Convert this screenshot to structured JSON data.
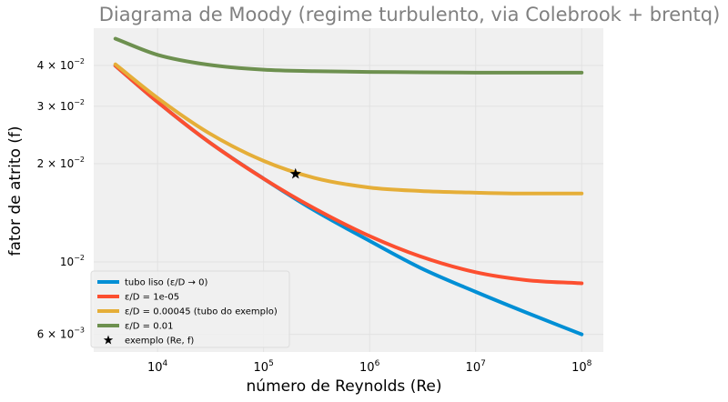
{
  "chart_data": {
    "type": "line",
    "title": "Diagrama de Moody (regime turbulento, via Colebrook + brentq)",
    "xlabel": "número de Reynolds (Re)",
    "ylabel": "fator de atrito (f)",
    "xscale": "log",
    "yscale": "log",
    "xlim": [
      2500,
      160000000
    ],
    "ylim": [
      0.0053,
      0.052
    ],
    "grid": true,
    "legend_position": "lower-left",
    "x_ticks": [
      {
        "value": 10000,
        "base": "10",
        "exp": "4"
      },
      {
        "value": 100000,
        "base": "10",
        "exp": "5"
      },
      {
        "value": 1000000,
        "base": "10",
        "exp": "6"
      },
      {
        "value": 10000000,
        "base": "10",
        "exp": "7"
      },
      {
        "value": 100000000,
        "base": "10",
        "exp": "8"
      }
    ],
    "y_ticks": [
      {
        "value": 0.04,
        "mant": "4 × 10",
        "exp": "−2"
      },
      {
        "value": 0.03,
        "mant": "3 × 10",
        "exp": "−2"
      },
      {
        "value": 0.02,
        "mant": "2 × 10",
        "exp": "−2"
      },
      {
        "value": 0.01,
        "mant": "10",
        "exp": "−2"
      },
      {
        "value": 0.006,
        "mant": "6 × 10",
        "exp": "−3"
      }
    ],
    "x": [
      4000,
      10000,
      30000,
      100000,
      300000,
      1000000,
      3000000,
      10000000,
      30000000,
      100000000
    ],
    "series": [
      {
        "name": "tubo liso (ε/D → 0)",
        "color": "#008fd5",
        "values": [
          0.0399,
          0.0309,
          0.0234,
          0.018,
          0.0144,
          0.0116,
          0.0096,
          0.0081,
          0.007,
          0.006
        ]
      },
      {
        "name": "ε/D = 1e-05",
        "color": "#fc4f30",
        "values": [
          0.0399,
          0.0309,
          0.0234,
          0.018,
          0.0146,
          0.012,
          0.0104,
          0.0093,
          0.0088,
          0.0086
        ]
      },
      {
        "name": "ε/D = 0.00045 (tubo do exemplo)",
        "color": "#e5ae38",
        "values": [
          0.0403,
          0.0318,
          0.0249,
          0.0204,
          0.0181,
          0.0169,
          0.0165,
          0.0163,
          0.0162,
          0.0162
        ]
      },
      {
        "name": "ε/D = 0.01",
        "color": "#6d904f",
        "values": [
          0.0483,
          0.0431,
          0.0402,
          0.0388,
          0.0384,
          0.0382,
          0.0381,
          0.038,
          0.038,
          0.038
        ]
      }
    ],
    "marker": {
      "name": "exemplo (Re, f)",
      "x": 200000,
      "y": 0.0186,
      "symbol": "star",
      "color": "#000000"
    }
  }
}
